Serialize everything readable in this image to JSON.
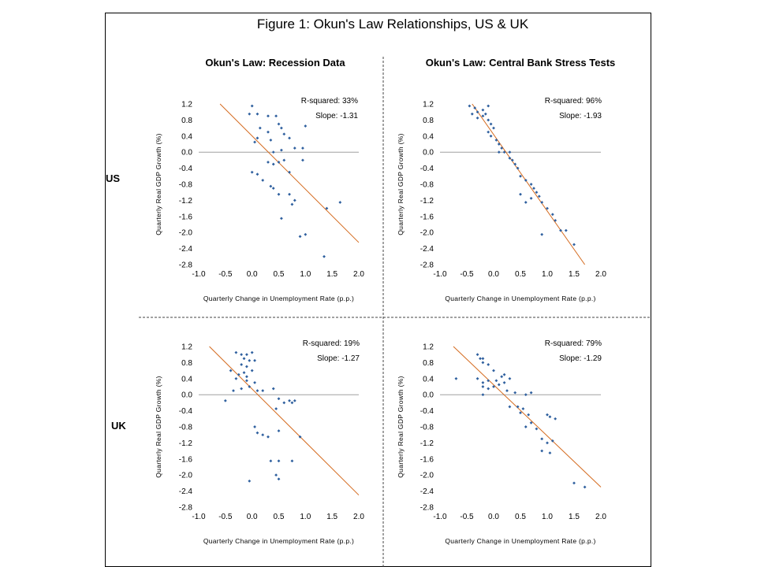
{
  "figure": {
    "title": "Figure 1: Okun's Law Relationships, US & UK",
    "row_labels": [
      "US",
      "UK"
    ],
    "panel_titles": [
      "Okun's Law: Recession Data",
      "Okun's Law: Central Bank Stress Tests"
    ]
  },
  "colors": {
    "points": "#2e5f9e",
    "fit_line": "#d46a1e",
    "zero_line": "#a0a0a0"
  },
  "chart_data": [
    {
      "type": "scatter",
      "title": "Okun's Law: Recession Data",
      "region": "US",
      "xlabel": "Quarterly Change in Unemployment Rate (p.p.)",
      "ylabel": "Quarterly Real GDP Growth (%)",
      "xlim": [
        -1.0,
        2.0
      ],
      "ylim": [
        -2.8,
        1.2
      ],
      "xticks": [
        "-1.0",
        "-0.5",
        "0.0",
        "0.5",
        "1.0",
        "1.5",
        "2.0"
      ],
      "yticks": [
        "1.2",
        "0.8",
        "0.4",
        "0.0",
        "-0.4",
        "-0.8",
        "-1.2",
        "-1.6",
        "-2.0",
        "-2.4",
        "-2.8"
      ],
      "annotations": [
        "R-squared: 33%",
        "Slope: -1.31"
      ],
      "fit_line": {
        "x": [
          -0.6,
          2.0
        ],
        "y": [
          1.2,
          -2.25
        ]
      },
      "points": [
        [
          0.0,
          1.15
        ],
        [
          -0.05,
          0.95
        ],
        [
          0.1,
          0.95
        ],
        [
          0.3,
          0.9
        ],
        [
          0.5,
          0.7
        ],
        [
          0.55,
          0.6
        ],
        [
          0.1,
          0.35
        ],
        [
          0.05,
          0.25
        ],
        [
          0.3,
          0.5
        ],
        [
          0.35,
          0.3
        ],
        [
          0.6,
          0.45
        ],
        [
          0.7,
          0.35
        ],
        [
          0.8,
          0.1
        ],
        [
          0.55,
          0.05
        ],
        [
          0.4,
          0.0
        ],
        [
          1.0,
          0.65
        ],
        [
          0.95,
          0.1
        ],
        [
          0.95,
          -0.2
        ],
        [
          0.3,
          -0.25
        ],
        [
          0.4,
          -0.3
        ],
        [
          0.5,
          -0.25
        ],
        [
          0.6,
          -0.2
        ],
        [
          0.7,
          -0.5
        ],
        [
          0.1,
          -0.55
        ],
        [
          0.0,
          -0.5
        ],
        [
          0.2,
          -0.7
        ],
        [
          0.35,
          -0.85
        ],
        [
          0.4,
          -0.9
        ],
        [
          0.5,
          -1.05
        ],
        [
          0.7,
          -1.05
        ],
        [
          0.75,
          -1.3
        ],
        [
          0.8,
          -1.2
        ],
        [
          0.55,
          -1.65
        ],
        [
          1.4,
          -1.4
        ],
        [
          1.65,
          -1.25
        ],
        [
          0.9,
          -2.1
        ],
        [
          1.0,
          -2.05
        ],
        [
          1.35,
          -2.6
        ],
        [
          0.45,
          0.9
        ],
        [
          0.15,
          0.6
        ]
      ]
    },
    {
      "type": "scatter",
      "title": "Okun's Law: Central Bank Stress Tests",
      "region": "US",
      "xlabel": "Quarterly Change in Unemployment Rate (p.p.)",
      "ylabel": "Quarterly Real GDP Growth (%)",
      "xlim": [
        -1.0,
        2.0
      ],
      "ylim": [
        -2.8,
        1.2
      ],
      "xticks": [
        "-1.0",
        "-0.5",
        "0.0",
        "0.5",
        "1.0",
        "1.5",
        "2.0"
      ],
      "yticks": [
        "1.2",
        "0.8",
        "0.4",
        "0.0",
        "-0.4",
        "-0.8",
        "-1.2",
        "-1.6",
        "-2.0",
        "-2.4",
        "-2.8"
      ],
      "annotations": [
        "R-squared: 96%",
        "Slope: -1.93"
      ],
      "fit_line": {
        "x": [
          -0.4,
          1.7
        ],
        "y": [
          1.2,
          -2.8
        ]
      },
      "points": [
        [
          -0.45,
          1.15
        ],
        [
          -0.35,
          1.1
        ],
        [
          -0.3,
          1.0
        ],
        [
          -0.2,
          1.05
        ],
        [
          -0.15,
          0.95
        ],
        [
          -0.1,
          1.15
        ],
        [
          -0.2,
          0.9
        ],
        [
          -0.4,
          0.95
        ],
        [
          -0.3,
          0.85
        ],
        [
          -0.1,
          0.8
        ],
        [
          -0.05,
          0.7
        ],
        [
          0.0,
          0.6
        ],
        [
          -0.1,
          0.5
        ],
        [
          -0.05,
          0.4
        ],
        [
          0.05,
          0.3
        ],
        [
          0.1,
          0.2
        ],
        [
          0.15,
          0.1
        ],
        [
          0.1,
          0.0
        ],
        [
          0.3,
          0.0
        ],
        [
          0.2,
          0.0
        ],
        [
          0.35,
          -0.2
        ],
        [
          0.4,
          -0.3
        ],
        [
          0.45,
          -0.4
        ],
        [
          0.5,
          -0.6
        ],
        [
          0.6,
          -0.7
        ],
        [
          0.7,
          -0.8
        ],
        [
          0.75,
          -0.9
        ],
        [
          0.8,
          -1.0
        ],
        [
          0.85,
          -1.1
        ],
        [
          0.9,
          -1.25
        ],
        [
          0.7,
          -1.15
        ],
        [
          0.5,
          -1.05
        ],
        [
          0.6,
          -1.25
        ],
        [
          1.0,
          -1.4
        ],
        [
          1.1,
          -1.55
        ],
        [
          1.15,
          -1.7
        ],
        [
          1.25,
          -1.95
        ],
        [
          1.35,
          -1.95
        ],
        [
          1.5,
          -2.3
        ],
        [
          0.9,
          -2.05
        ],
        [
          0.3,
          -0.15
        ]
      ]
    },
    {
      "type": "scatter",
      "title": "",
      "region": "UK",
      "xlabel": "Quarterly Change in Unemployment Rate (p.p.)",
      "ylabel": "Quarterly Real GDP Growth (%)",
      "xlim": [
        -1.0,
        2.0
      ],
      "ylim": [
        -2.8,
        1.2
      ],
      "xticks": [
        "-1.0",
        "-0.5",
        "0.0",
        "0.5",
        "1.0",
        "1.5",
        "2.0"
      ],
      "yticks": [
        "1.2",
        "0.8",
        "0.4",
        "0.0",
        "-0.4",
        "-0.8",
        "-1.2",
        "-1.6",
        "-2.0",
        "-2.4",
        "-2.8"
      ],
      "annotations": [
        "R-squared: 19%",
        "Slope: -1.27"
      ],
      "fit_line": {
        "x": [
          -0.8,
          2.0
        ],
        "y": [
          1.2,
          -2.5
        ]
      },
      "points": [
        [
          -0.3,
          1.05
        ],
        [
          -0.2,
          1.0
        ],
        [
          -0.1,
          1.0
        ],
        [
          0.0,
          1.05
        ],
        [
          -0.15,
          0.9
        ],
        [
          -0.05,
          0.85
        ],
        [
          0.05,
          0.85
        ],
        [
          -0.2,
          0.75
        ],
        [
          -0.1,
          0.7
        ],
        [
          0.0,
          0.6
        ],
        [
          -0.15,
          0.55
        ],
        [
          -0.25,
          0.5
        ],
        [
          -0.4,
          0.6
        ],
        [
          -0.3,
          0.4
        ],
        [
          -0.1,
          0.35
        ],
        [
          0.05,
          0.3
        ],
        [
          -0.05,
          0.2
        ],
        [
          0.1,
          0.1
        ],
        [
          -0.35,
          0.1
        ],
        [
          -0.2,
          0.15
        ],
        [
          0.4,
          0.15
        ],
        [
          0.2,
          0.1
        ],
        [
          -0.1,
          0.45
        ],
        [
          0.5,
          -0.1
        ],
        [
          0.6,
          -0.2
        ],
        [
          0.7,
          -0.15
        ],
        [
          0.75,
          -0.2
        ],
        [
          0.8,
          -0.15
        ],
        [
          0.45,
          -0.35
        ],
        [
          -0.5,
          -0.15
        ],
        [
          0.05,
          -0.8
        ],
        [
          0.1,
          -0.95
        ],
        [
          0.2,
          -1.0
        ],
        [
          0.3,
          -1.05
        ],
        [
          0.5,
          -0.9
        ],
        [
          0.9,
          -1.05
        ],
        [
          0.35,
          -1.65
        ],
        [
          0.5,
          -1.65
        ],
        [
          0.75,
          -1.65
        ],
        [
          0.45,
          -2.0
        ],
        [
          0.5,
          -2.1
        ],
        [
          -0.05,
          -2.15
        ]
      ]
    },
    {
      "type": "scatter",
      "title": "",
      "region": "UK",
      "xlabel": "Quarterly Change in Unemployment Rate (p.p.)",
      "ylabel": "Quarterly Real GDP Growth (%)",
      "xlim": [
        -1.0,
        2.0
      ],
      "ylim": [
        -2.8,
        1.2
      ],
      "xticks": [
        "-1.0",
        "-0.5",
        "0.0",
        "0.5",
        "1.0",
        "1.5",
        "2.0"
      ],
      "yticks": [
        "1.2",
        "0.8",
        "0.4",
        "0.0",
        "-0.4",
        "-0.8",
        "-1.2",
        "-1.6",
        "-2.0",
        "-2.4",
        "-2.8"
      ],
      "annotations": [
        "R-squared: 79%",
        "Slope: -1.29"
      ],
      "fit_line": {
        "x": [
          -0.75,
          2.0
        ],
        "y": [
          1.2,
          -2.3
        ]
      },
      "points": [
        [
          -0.3,
          1.0
        ],
        [
          -0.25,
          0.9
        ],
        [
          -0.2,
          0.9
        ],
        [
          -0.2,
          0.8
        ],
        [
          -0.1,
          0.75
        ],
        [
          0.0,
          0.6
        ],
        [
          -0.7,
          0.4
        ],
        [
          -0.3,
          0.4
        ],
        [
          -0.2,
          0.3
        ],
        [
          -0.1,
          0.35
        ],
        [
          0.05,
          0.35
        ],
        [
          0.15,
          0.45
        ],
        [
          0.2,
          0.5
        ],
        [
          0.3,
          0.4
        ],
        [
          -0.2,
          0.2
        ],
        [
          -0.1,
          0.15
        ],
        [
          0.0,
          0.2
        ],
        [
          0.1,
          0.25
        ],
        [
          0.2,
          0.3
        ],
        [
          0.25,
          0.1
        ],
        [
          0.4,
          0.05
        ],
        [
          0.6,
          0.0
        ],
        [
          0.7,
          0.05
        ],
        [
          0.3,
          -0.3
        ],
        [
          0.45,
          -0.3
        ],
        [
          0.55,
          -0.35
        ],
        [
          0.5,
          -0.45
        ],
        [
          0.65,
          -0.5
        ],
        [
          0.7,
          -0.7
        ],
        [
          0.8,
          -0.85
        ],
        [
          0.9,
          -1.1
        ],
        [
          1.0,
          -1.2
        ],
        [
          1.05,
          -1.45
        ],
        [
          1.1,
          -1.15
        ],
        [
          1.0,
          -0.5
        ],
        [
          1.05,
          -0.55
        ],
        [
          1.15,
          -0.6
        ],
        [
          0.6,
          -0.8
        ],
        [
          0.9,
          -1.4
        ],
        [
          1.5,
          -2.2
        ],
        [
          1.7,
          -2.3
        ],
        [
          -0.2,
          0.0
        ]
      ]
    }
  ]
}
